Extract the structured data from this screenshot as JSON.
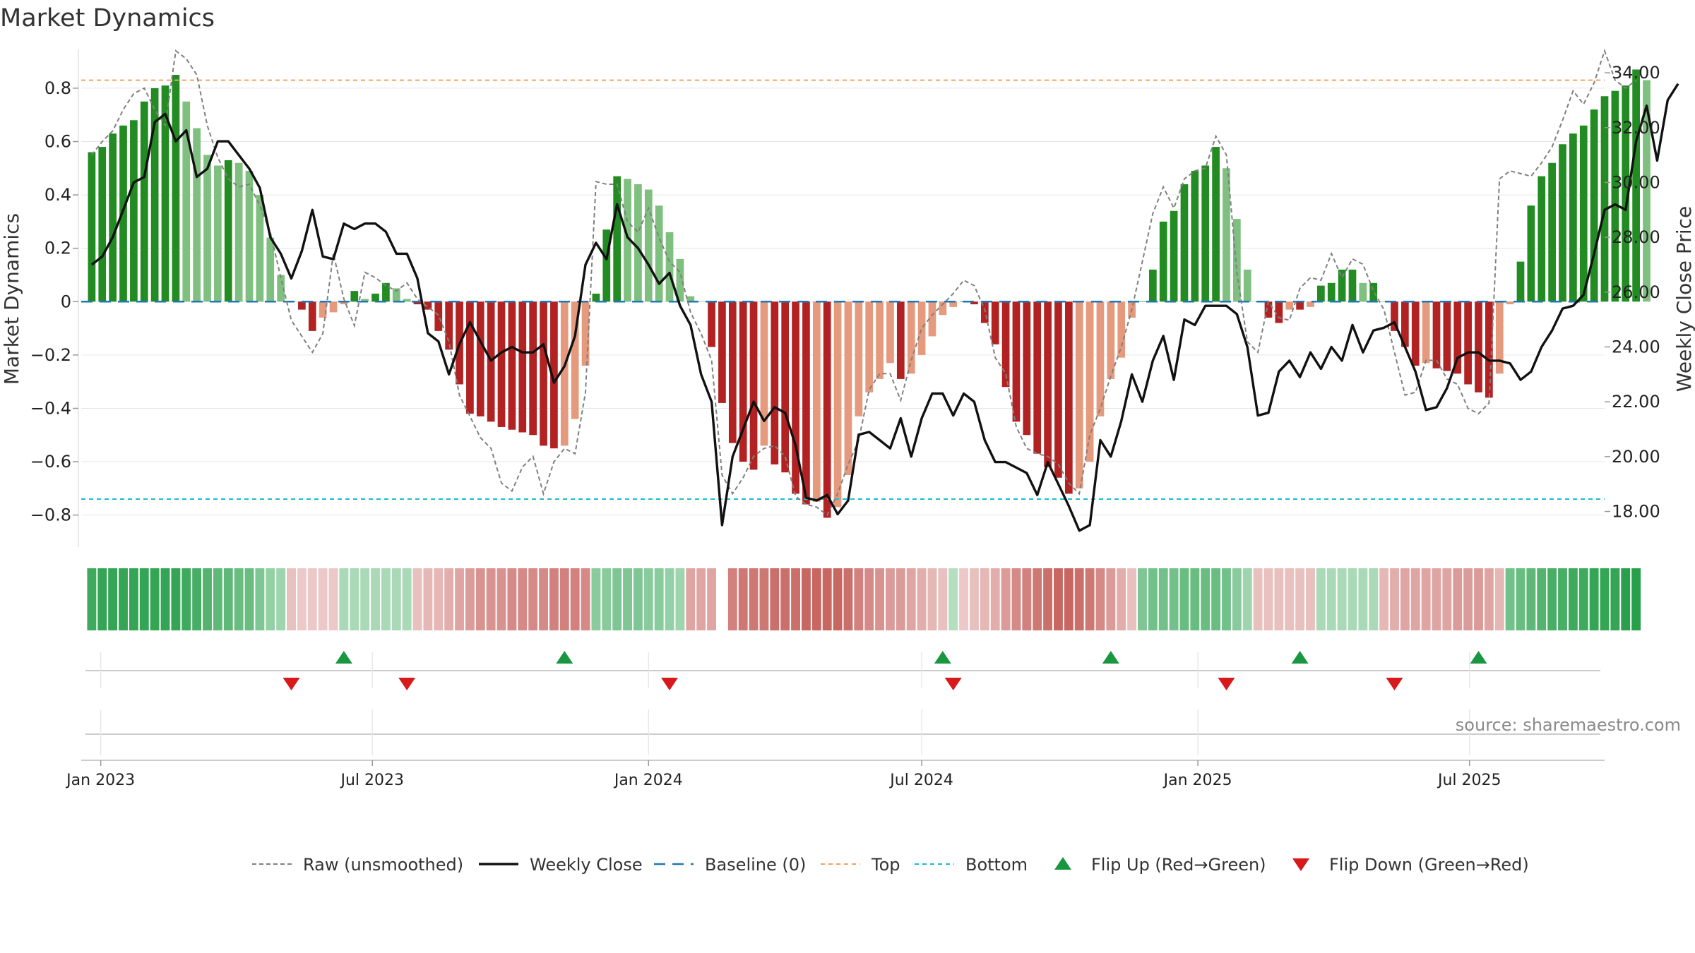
{
  "title": "Market Dynamics",
  "source": "source: sharemaestro.com",
  "colors": {
    "pos_strong": "#228b22",
    "pos_weak": "#7fbf7f",
    "neg_strong": "#b22222",
    "neg_weak": "#e59a7e",
    "price": "#111111",
    "raw": "#808080",
    "baseline": "#1f77b4",
    "top": "#f4a261",
    "bottom": "#17becf",
    "flip_up": "#1a9641",
    "flip_down": "#d7191c"
  },
  "chart_data": {
    "type": "bar",
    "title": "Market Dynamics",
    "ylabel": "Market Dynamics",
    "y2label": "Weekly Close Price",
    "ylim": [
      -0.92,
      0.94
    ],
    "y2lim": [
      16.7,
      34.8
    ],
    "yticks": [
      -0.8,
      -0.6,
      -0.4,
      -0.2,
      0,
      0.2,
      0.4,
      0.6,
      0.8
    ],
    "ytick_labels": [
      "−0.8",
      "−0.6",
      "−0.4",
      "−0.2",
      "0",
      "0.2",
      "0.4",
      "0.6",
      "0.8"
    ],
    "y2ticks": [
      18,
      20,
      22,
      24,
      26,
      28,
      30,
      32,
      34
    ],
    "y2tick_labels": [
      "18.00",
      "20.00",
      "22.00",
      "24.00",
      "26.00",
      "28.00",
      "30.00",
      "32.00",
      "34.00"
    ],
    "xlim": [
      "2022-12-19",
      "2025-09-29"
    ],
    "xticks": [
      "2023-01-01",
      "2023-07-01",
      "2024-01-01",
      "2024-07-01",
      "2025-01-01",
      "2025-07-01"
    ],
    "xtick_labels": [
      "Jan 2023",
      "Jul 2023",
      "Jan 2024",
      "Jul 2024",
      "Jan 2025",
      "Jul 2025"
    ],
    "top_line": 0.83,
    "bottom_line": -0.74,
    "baseline": 0,
    "grid": true,
    "legend_position": "bottom",
    "legend": [
      "Raw (unsmoothed)",
      "Weekly Close",
      "Baseline (0)",
      "Top",
      "Bottom",
      "Flip Up (Red→Green)",
      "Flip Down (Green→Red)"
    ],
    "first_week": "2022-12-26",
    "dynamics": [
      0.56,
      0.58,
      0.63,
      0.66,
      0.68,
      0.75,
      0.8,
      0.81,
      0.85,
      0.75,
      0.65,
      0.55,
      0.51,
      0.53,
      0.52,
      0.49,
      0.4,
      0.24,
      0.1,
      0.0,
      -0.03,
      -0.11,
      -0.06,
      -0.04,
      -0.01,
      0.04,
      0.01,
      0.03,
      0.07,
      0.05,
      0.01,
      -0.01,
      -0.03,
      -0.11,
      -0.18,
      -0.31,
      -0.42,
      -0.43,
      -0.45,
      -0.47,
      -0.48,
      -0.49,
      -0.5,
      -0.54,
      -0.55,
      -0.54,
      -0.44,
      -0.24,
      0.03,
      0.27,
      0.47,
      0.46,
      0.44,
      0.42,
      0.36,
      0.26,
      0.16,
      0.02,
      0.0,
      -0.17,
      -0.38,
      -0.53,
      -0.6,
      -0.63,
      -0.54,
      -0.61,
      -0.64,
      -0.72,
      -0.76,
      -0.75,
      -0.81,
      -0.77,
      -0.65,
      -0.43,
      -0.34,
      -0.29,
      -0.23,
      -0.29,
      -0.27,
      -0.2,
      -0.13,
      -0.05,
      -0.02,
      0.0,
      -0.01,
      -0.08,
      -0.16,
      -0.32,
      -0.45,
      -0.5,
      -0.57,
      -0.62,
      -0.66,
      -0.72,
      -0.7,
      -0.6,
      -0.43,
      -0.29,
      -0.21,
      -0.06,
      0.0,
      0.12,
      0.3,
      0.34,
      0.44,
      0.49,
      0.51,
      0.58,
      0.5,
      0.31,
      0.12,
      0.0,
      -0.06,
      -0.08,
      -0.03,
      -0.03,
      -0.02,
      0.06,
      0.07,
      0.12,
      0.12,
      0.07,
      0.07,
      0.0,
      -0.11,
      -0.17,
      -0.24,
      -0.23,
      -0.25,
      -0.26,
      -0.27,
      -0.31,
      -0.34,
      -0.36,
      -0.27,
      -0.01,
      0.15,
      0.36,
      0.47,
      0.52,
      0.59,
      0.63,
      0.66,
      0.72,
      0.77,
      0.79,
      0.81,
      0.87,
      0.83
    ],
    "raw": [
      0.55,
      0.6,
      0.64,
      0.72,
      0.78,
      0.8,
      0.72,
      0.66,
      0.94,
      0.91,
      0.85,
      0.66,
      0.54,
      0.46,
      0.43,
      0.44,
      0.36,
      0.26,
      0.09,
      -0.07,
      -0.13,
      -0.19,
      -0.12,
      0.18,
      0.01,
      -0.09,
      0.11,
      0.09,
      0.06,
      0.04,
      0.07,
      0.01,
      -0.02,
      -0.05,
      -0.15,
      -0.35,
      -0.43,
      -0.51,
      -0.55,
      -0.68,
      -0.71,
      -0.62,
      -0.58,
      -0.72,
      -0.6,
      -0.55,
      -0.57,
      -0.34,
      0.45,
      0.44,
      0.44,
      0.3,
      0.26,
      0.35,
      0.24,
      0.15,
      0.11,
      -0.04,
      -0.12,
      -0.22,
      -0.65,
      -0.72,
      -0.66,
      -0.58,
      -0.55,
      -0.54,
      -0.58,
      -0.73,
      -0.76,
      -0.77,
      -0.8,
      -0.72,
      -0.61,
      -0.52,
      -0.33,
      -0.27,
      -0.27,
      -0.37,
      -0.22,
      -0.1,
      -0.05,
      -0.01,
      0.03,
      0.08,
      0.06,
      -0.03,
      -0.21,
      -0.27,
      -0.47,
      -0.55,
      -0.57,
      -0.58,
      -0.61,
      -0.68,
      -0.72,
      -0.5,
      -0.4,
      -0.28,
      -0.17,
      -0.03,
      0.15,
      0.33,
      0.43,
      0.35,
      0.46,
      0.49,
      0.5,
      0.62,
      0.55,
      0.11,
      -0.15,
      -0.19,
      0.0,
      -0.06,
      -0.07,
      0.05,
      0.09,
      0.08,
      0.18,
      0.09,
      0.16,
      0.14,
      0.04,
      -0.03,
      -0.19,
      -0.35,
      -0.34,
      -0.22,
      -0.22,
      -0.29,
      -0.31,
      -0.4,
      -0.42,
      -0.38,
      0.46,
      0.49,
      0.48,
      0.47,
      0.52,
      0.58,
      0.68,
      0.79,
      0.74,
      0.82,
      0.94,
      0.83,
      0.8,
      0.83
    ],
    "price": [
      27.0,
      27.3,
      28.0,
      29.0,
      30.0,
      30.2,
      32.2,
      32.5,
      31.5,
      31.9,
      30.2,
      30.5,
      31.5,
      31.5,
      31.0,
      30.5,
      29.8,
      28.0,
      27.4,
      26.5,
      27.5,
      29.0,
      27.3,
      27.2,
      28.5,
      28.3,
      28.5,
      28.5,
      28.2,
      27.4,
      27.4,
      26.5,
      24.5,
      24.2,
      23.0,
      24.1,
      24.9,
      24.2,
      23.5,
      23.8,
      24.0,
      23.8,
      23.8,
      24.1,
      22.7,
      23.3,
      24.4,
      27.0,
      27.8,
      27.2,
      29.2,
      28.0,
      27.6,
      27.0,
      26.3,
      26.7,
      25.5,
      24.8,
      23.0,
      22.0,
      17.5,
      20.0,
      21.0,
      22.0,
      21.3,
      21.8,
      21.6,
      20.4,
      18.5,
      18.4,
      18.6,
      17.9,
      18.4,
      20.8,
      20.9,
      20.6,
      20.3,
      21.4,
      20.0,
      21.4,
      22.3,
      22.3,
      21.5,
      22.3,
      22.0,
      20.6,
      19.8,
      19.8,
      19.6,
      19.4,
      18.6,
      19.8,
      19.0,
      18.2,
      17.3,
      17.5,
      20.6,
      20.0,
      21.3,
      23.0,
      22.0,
      23.5,
      24.4,
      22.8,
      25.0,
      24.8,
      25.5,
      25.5,
      25.5,
      25.2,
      24.0,
      21.5,
      21.6,
      23.1,
      23.5,
      22.9,
      23.8,
      23.2,
      24.0,
      23.5,
      24.8,
      23.8,
      24.6,
      24.7,
      24.9,
      24.0,
      23.1,
      21.7,
      21.8,
      22.5,
      23.6,
      23.8,
      23.8,
      23.5,
      23.5,
      23.4,
      22.8,
      23.1,
      24.0,
      24.6,
      25.4,
      25.5,
      25.9,
      27.4,
      29.0,
      29.2,
      29.0,
      31.5,
      32.8,
      30.8,
      33.0,
      33.6
    ],
    "trend_strip": [
      2.8,
      3.0,
      3.0,
      3.0,
      3.0,
      3.0,
      3.0,
      3.0,
      3.0,
      2.8,
      2.6,
      2.4,
      2.2,
      2.2,
      2.0,
      2.0,
      1.6,
      1.2,
      1.0,
      -0.6,
      -0.4,
      -0.4,
      -0.4,
      -0.4,
      0.8,
      0.8,
      0.8,
      0.8,
      0.8,
      0.8,
      0.8,
      -0.6,
      -0.8,
      -0.8,
      -1.0,
      -1.2,
      -1.4,
      -1.6,
      -1.6,
      -1.6,
      -1.8,
      -1.8,
      -1.8,
      -1.8,
      -2.0,
      -2.0,
      -2.0,
      -1.8,
      1.4,
      1.4,
      1.6,
      1.6,
      1.6,
      1.4,
      1.4,
      1.2,
      1.0,
      -1.2,
      -1.2,
      -1.2,
      null,
      -2.0,
      -2.2,
      -2.2,
      -2.2,
      -2.4,
      -2.4,
      -2.4,
      -2.6,
      -2.6,
      -2.6,
      -2.6,
      -2.4,
      -2.0,
      -1.8,
      -1.6,
      -1.4,
      -1.4,
      -1.2,
      -1.0,
      -0.8,
      -0.6,
      0.6,
      -0.4,
      -0.6,
      -0.8,
      -1.0,
      -1.4,
      -1.8,
      -2.0,
      -2.2,
      -2.4,
      -2.6,
      -2.6,
      -2.4,
      -2.2,
      -1.8,
      -1.4,
      -1.0,
      -0.6,
      1.6,
      1.8,
      1.8,
      1.8,
      2.0,
      2.0,
      2.0,
      2.0,
      1.8,
      1.4,
      1.0,
      -0.6,
      -0.6,
      -0.6,
      -0.6,
      -0.6,
      -0.6,
      0.8,
      0.8,
      0.8,
      0.8,
      0.8,
      0.8,
      -0.8,
      -1.0,
      -1.2,
      -1.2,
      -1.2,
      -1.2,
      -1.2,
      -1.4,
      -1.4,
      -1.4,
      -1.2,
      -0.8,
      1.8,
      2.0,
      2.2,
      2.4,
      2.6,
      2.6,
      2.8,
      2.8,
      3.0,
      3.0,
      3.0,
      3.2,
      3.2
    ],
    "flip_up": [
      "2023-06-12",
      "2023-11-06",
      "2024-07-15",
      "2024-11-04",
      "2025-03-10",
      "2025-07-07"
    ],
    "flip_down": [
      "2023-05-08",
      "2023-07-24",
      "2024-01-15",
      "2024-07-22",
      "2025-01-20",
      "2025-05-12"
    ]
  }
}
